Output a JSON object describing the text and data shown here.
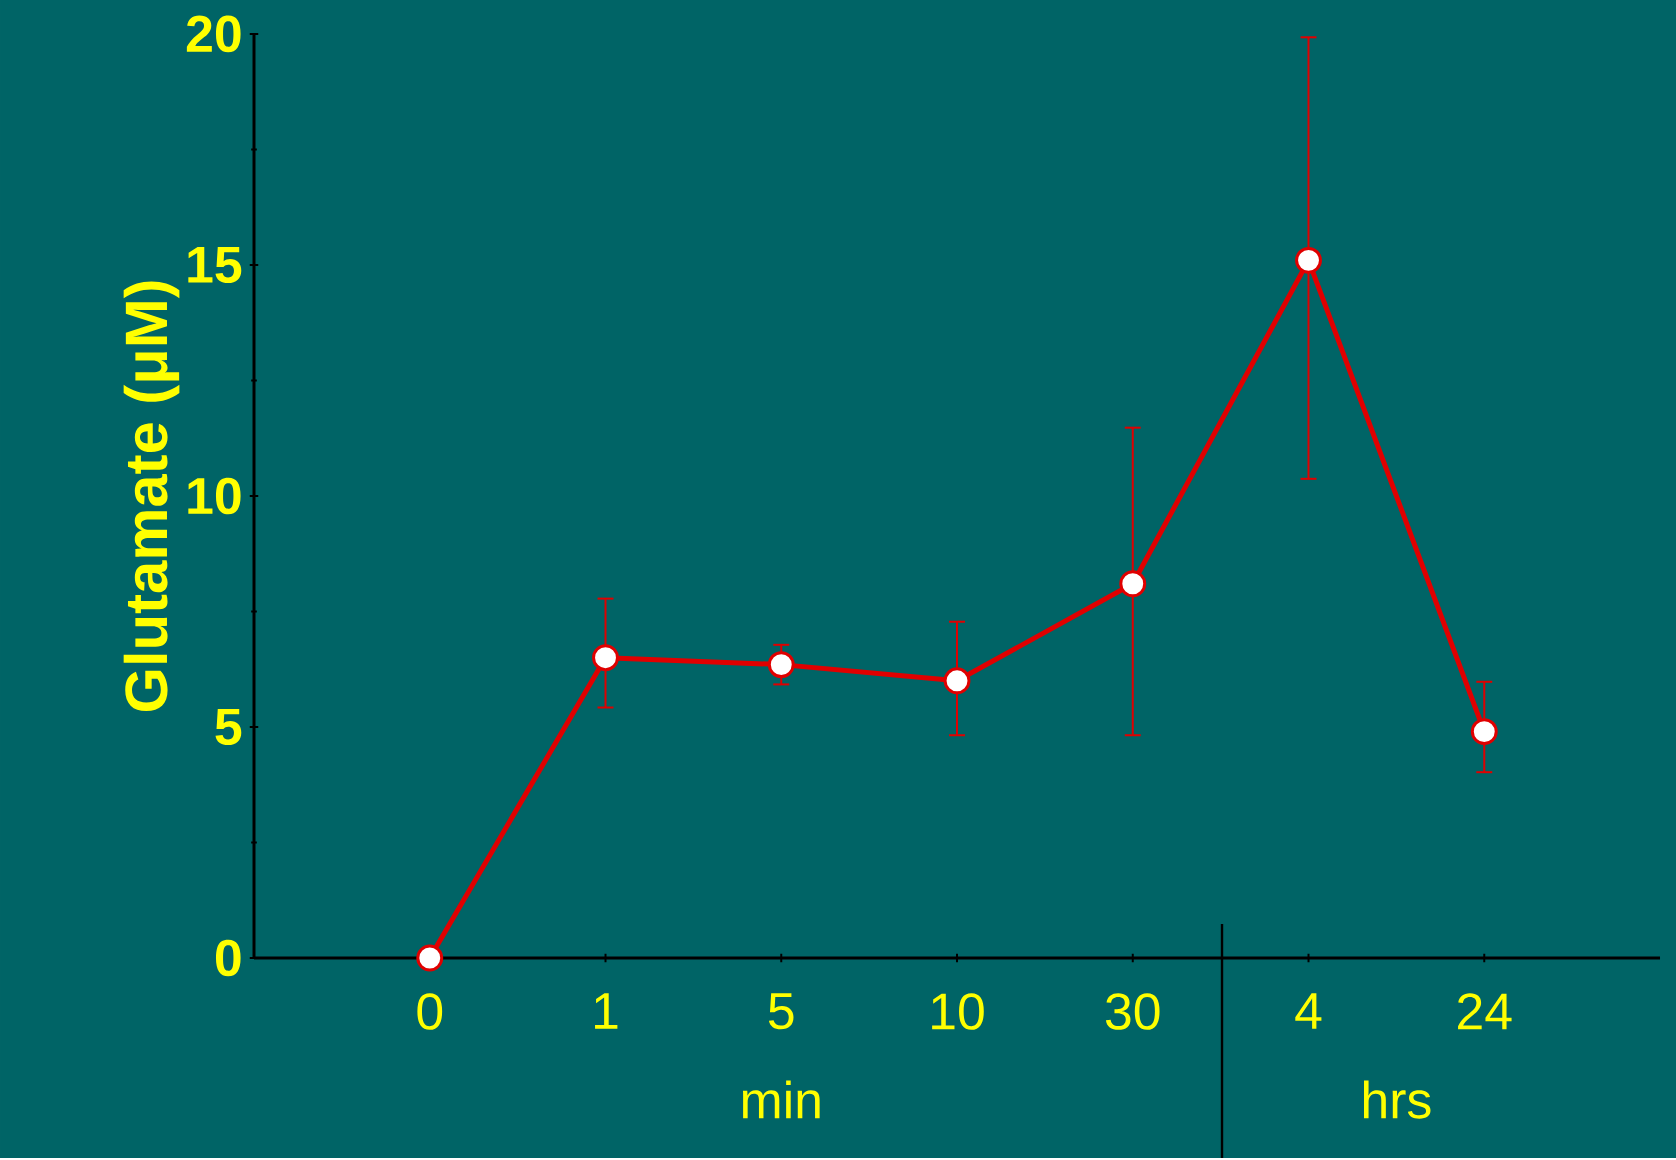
{
  "chart_data": {
    "type": "line",
    "ylabel": "Glutamate   (μM)",
    "xlabel": "min",
    "annotations": [
      "hrs"
    ],
    "categories": [
      "0",
      "1",
      "5",
      "10",
      "30",
      "4",
      "24"
    ],
    "series": [
      {
        "color": "#e00000",
        "values": [
          0,
          6.5,
          6.35,
          6.0,
          8.1,
          15.1,
          4.9
        ],
        "errors": [
          null,
          [
            5.4,
            7.8
          ],
          [
            5.9,
            6.8
          ],
          [
            4.8,
            7.3
          ],
          [
            4.8,
            11.5
          ],
          [
            10.35,
            19.95
          ],
          [
            4.0,
            6.0
          ]
        ]
      }
    ],
    "ylim": [
      0,
      20
    ],
    "yticks": [
      0,
      5,
      10,
      15,
      20
    ],
    "marker": "circle",
    "grid": false
  }
}
